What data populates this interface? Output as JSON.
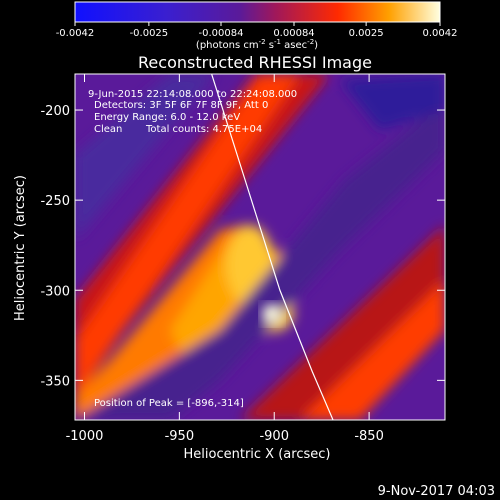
{
  "chart_data": {
    "type": "heatmap",
    "title": "Reconstructed RHESSI Image",
    "colorbar": {
      "ticks": [
        "-0.0042",
        "-0.0025",
        "-0.00084",
        "0.00084",
        "0.0025",
        "0.0042"
      ],
      "vmin": -0.0042,
      "vmax": 0.0042,
      "unit_prefix": "(photons cm",
      "unit_exp1": "-2",
      "unit_mid": " s",
      "unit_exp2": "-1",
      "unit_suffix": " asec",
      "unit_exp3": "-2",
      "unit_close": ")"
    },
    "xlabel": "Heliocentric X (arcsec)",
    "ylabel": "Heliocentric Y (arcsec)",
    "xlim": [
      -1005,
      -810
    ],
    "ylim": [
      -372,
      -180
    ],
    "xticks": [
      -1000,
      -950,
      -900,
      -850
    ],
    "xtick_labels": [
      "-1000",
      "-950",
      "-900",
      "-850"
    ],
    "yticks": [
      -200,
      -250,
      -300,
      -350
    ],
    "ytick_labels": [
      "-200",
      "-250",
      "-300",
      "-350"
    ],
    "info_lines": [
      "9-Jun-2015 22:14:08.000 to 22:24:08.000",
      "Detectors: 3F 5F 6F 7F 8F 9F, Att 0",
      "Energy Range: 6.0 - 12.0 keV"
    ],
    "clean_label": "Clean",
    "total_counts": "Total counts: 4.75E+04",
    "peak_text": "Position of Peak = [-896,-314]",
    "peak": [
      -896,
      -314
    ],
    "limb_curve": [
      [
        -933,
        -180
      ],
      [
        -915,
        -240
      ],
      [
        -897,
        -300
      ],
      [
        -880,
        -345
      ],
      [
        -869,
        -372
      ]
    ]
  },
  "footer_timestamp": "9-Nov-2017 04:03"
}
